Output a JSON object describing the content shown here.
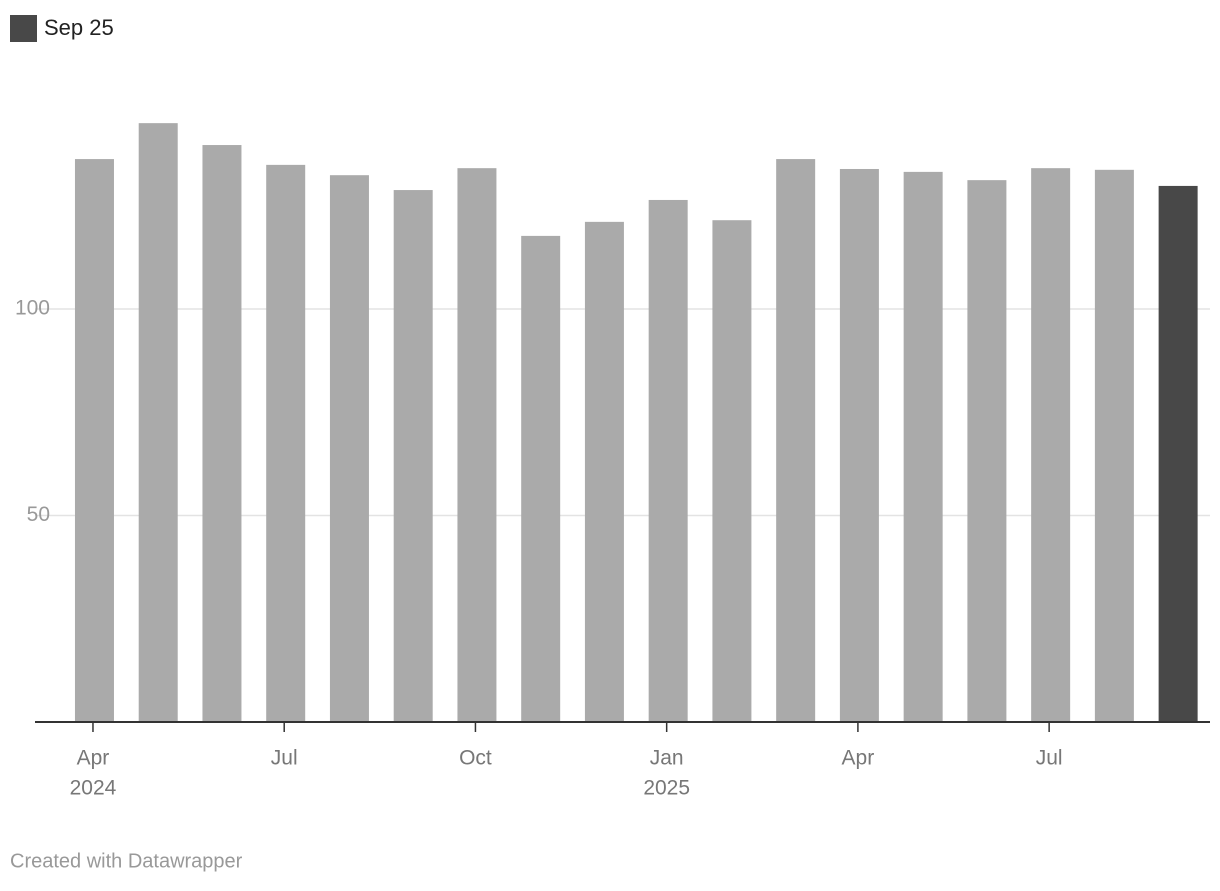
{
  "chart_data": {
    "type": "bar",
    "legend": {
      "label": "Sep 25",
      "color": "#484848"
    },
    "categories": [
      "Apr",
      null,
      null,
      "Jul",
      null,
      null,
      "Oct",
      null,
      null,
      "Jan",
      null,
      null,
      "Apr",
      null,
      null,
      "Jul",
      null,
      null
    ],
    "year_labels": [
      "2024",
      null,
      null,
      null,
      null,
      null,
      null,
      null,
      null,
      "2025",
      null,
      null,
      null,
      null,
      null,
      null,
      null,
      null
    ],
    "values": [
      136.3,
      145,
      139.7,
      134.9,
      132.4,
      128.8,
      134.1,
      117.7,
      121.1,
      126.4,
      121.5,
      136.3,
      133.9,
      133.2,
      131.2,
      134.1,
      133.7,
      129.8
    ],
    "colors": [
      "#aaaaaa",
      "#aaaaaa",
      "#aaaaaa",
      "#aaaaaa",
      "#aaaaaa",
      "#aaaaaa",
      "#aaaaaa",
      "#aaaaaa",
      "#aaaaaa",
      "#aaaaaa",
      "#aaaaaa",
      "#aaaaaa",
      "#aaaaaa",
      "#aaaaaa",
      "#aaaaaa",
      "#aaaaaa",
      "#aaaaaa",
      "#484848"
    ],
    "ylim": [
      0,
      150
    ],
    "yticks": [
      50,
      100
    ],
    "grid": true,
    "footer": "Created with Datawrapper"
  }
}
